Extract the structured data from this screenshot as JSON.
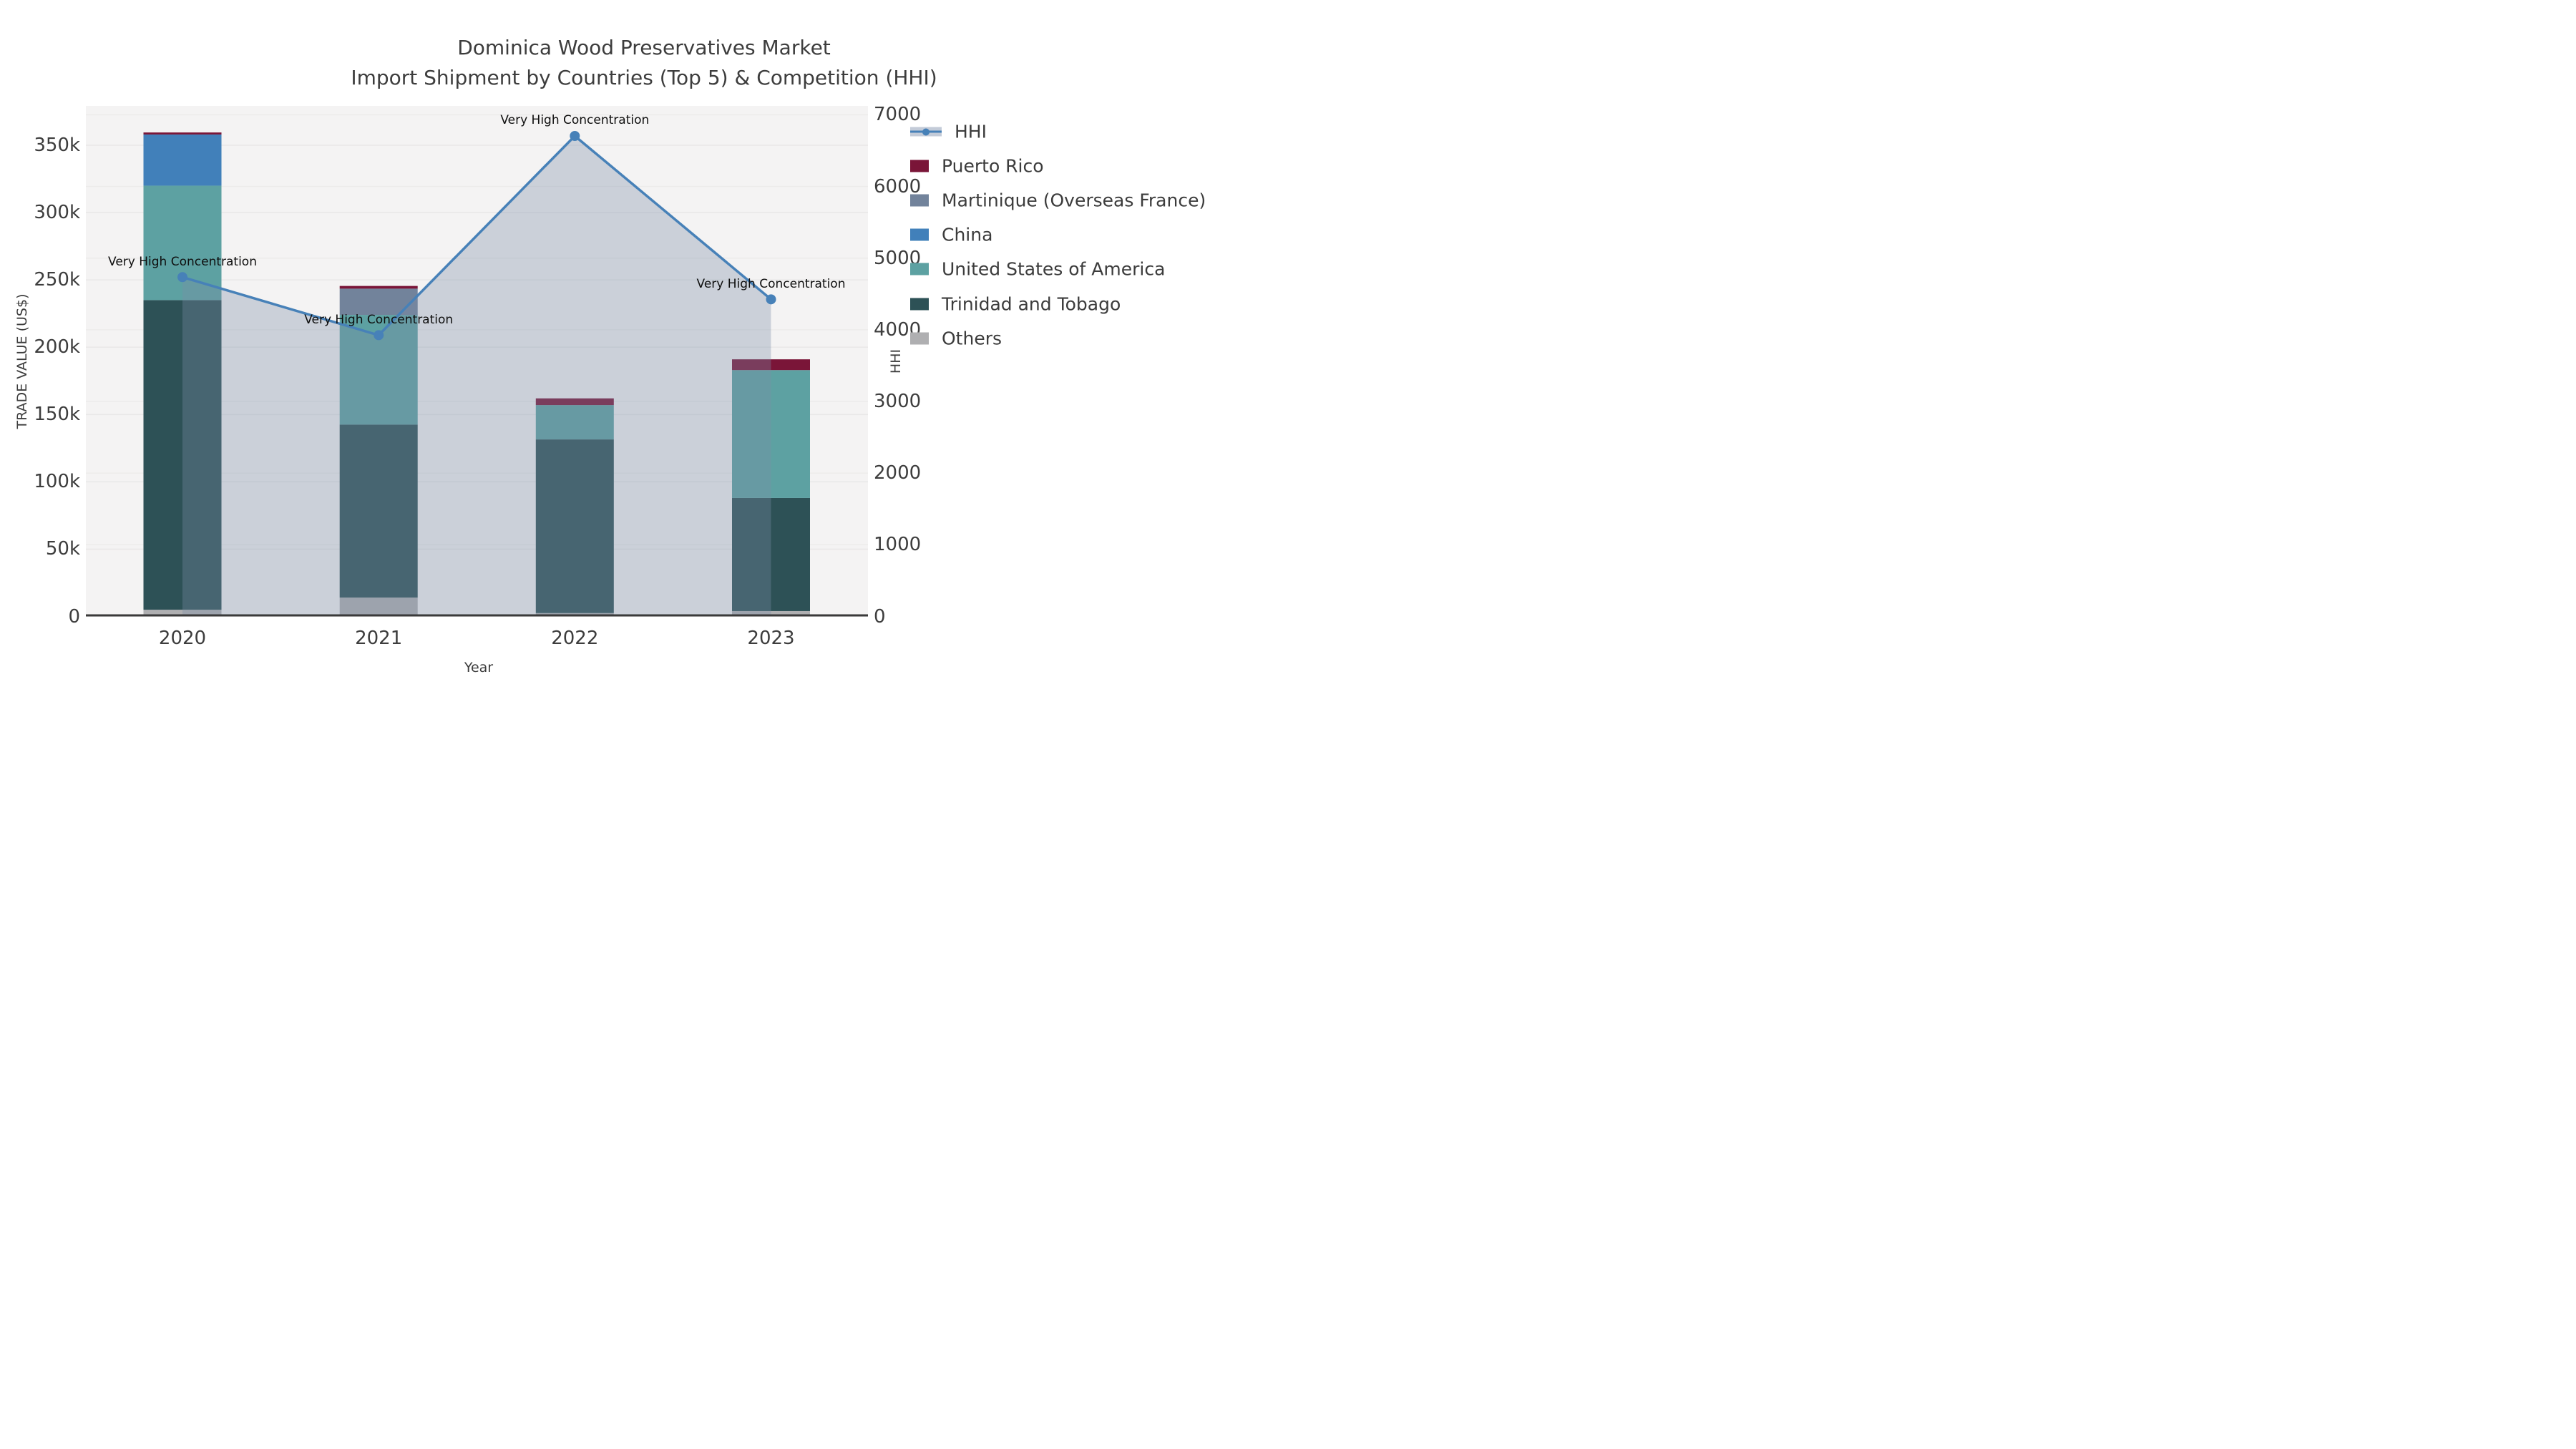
{
  "title": {
    "line1": "Dominica Wood Preservatives Market",
    "line2": "Import Shipment by Countries (Top 5) & Competition (HHI)"
  },
  "axes": {
    "left_title": "TRADE VALUE (US$)",
    "right_title": "HHI",
    "x_title": "Year",
    "left_ticks": [
      {
        "v": 0,
        "label": "0"
      },
      {
        "v": 50,
        "label": "50k"
      },
      {
        "v": 100,
        "label": "100k"
      },
      {
        "v": 150,
        "label": "150k"
      },
      {
        "v": 200,
        "label": "200k"
      },
      {
        "v": 250,
        "label": "250k"
      },
      {
        "v": 300,
        "label": "300k"
      },
      {
        "v": 350,
        "label": "350k"
      }
    ],
    "right_ticks": [
      {
        "v": 0,
        "label": "0"
      },
      {
        "v": 1000,
        "label": "1000"
      },
      {
        "v": 2000,
        "label": "2000"
      },
      {
        "v": 3000,
        "label": "3000"
      },
      {
        "v": 4000,
        "label": "4000"
      },
      {
        "v": 5000,
        "label": "5000"
      },
      {
        "v": 6000,
        "label": "6000"
      },
      {
        "v": 7000,
        "label": "7000"
      }
    ]
  },
  "legend": {
    "items": [
      {
        "label": "HHI",
        "type": "line",
        "color": "#4781B8",
        "band_color": "rgba(122,140,168,0.45)"
      },
      {
        "label": "Puerto Rico",
        "type": "patch",
        "color": "#7A1538"
      },
      {
        "label": "Martinique (Overseas France)",
        "type": "patch",
        "color": "#72839B"
      },
      {
        "label": "China",
        "type": "patch",
        "color": "#4180BA"
      },
      {
        "label": "United States of America",
        "type": "patch",
        "color": "#5DA1A2"
      },
      {
        "label": "Trinidad and Tobago",
        "type": "patch",
        "color": "#2D5156"
      },
      {
        "label": "Others",
        "type": "patch",
        "color": "#AFAFB1"
      }
    ]
  },
  "chart_data": {
    "type": "combo-stacked-bar-line",
    "categories": [
      "2020",
      "2021",
      "2022",
      "2023"
    ],
    "bar_unit": "US$ thousands",
    "bar_series": [
      {
        "name": "Others",
        "color": "#AFAFB1",
        "values": [
          5,
          14,
          2.5,
          4
        ]
      },
      {
        "name": "Trinidad and Tobago",
        "color": "#2D5156",
        "values": [
          230,
          128.5,
          129,
          84
        ]
      },
      {
        "name": "United States of America",
        "color": "#5DA1A2",
        "values": [
          85,
          81.5,
          25.5,
          95
        ]
      },
      {
        "name": "China",
        "color": "#4180BA",
        "values": [
          38,
          0,
          0,
          0
        ]
      },
      {
        "name": "Martinique (Overseas France)",
        "color": "#72839B",
        "values": [
          0,
          19.5,
          0,
          0
        ]
      },
      {
        "name": "Puerto Rico",
        "color": "#7A1538",
        "values": [
          1.5,
          2,
          5,
          8
        ]
      }
    ],
    "bar_totals_k": [
      359.5,
      245.5,
      162,
      191
    ],
    "line_series": {
      "name": "HHI",
      "color": "#4781B8",
      "fill_color": "rgba(122,140,168,0.34)",
      "values": [
        4735,
        3925,
        6705,
        4425
      ]
    },
    "annotations": [
      {
        "text": "Very High Concentration",
        "category": "2020"
      },
      {
        "text": "Very High Concentration",
        "category": "2021"
      },
      {
        "text": "Very High Concentration",
        "category": "2022"
      },
      {
        "text": "Very High Concentration",
        "category": "2023"
      }
    ],
    "y_left": {
      "label": "TRADE VALUE (US$)",
      "min": 0,
      "max": 379,
      "tick_step_k": 50
    },
    "y_right": {
      "label": "HHI",
      "min": 0,
      "max": 7125,
      "tick_step": 1000
    },
    "grid": true,
    "legend_position": "right"
  }
}
